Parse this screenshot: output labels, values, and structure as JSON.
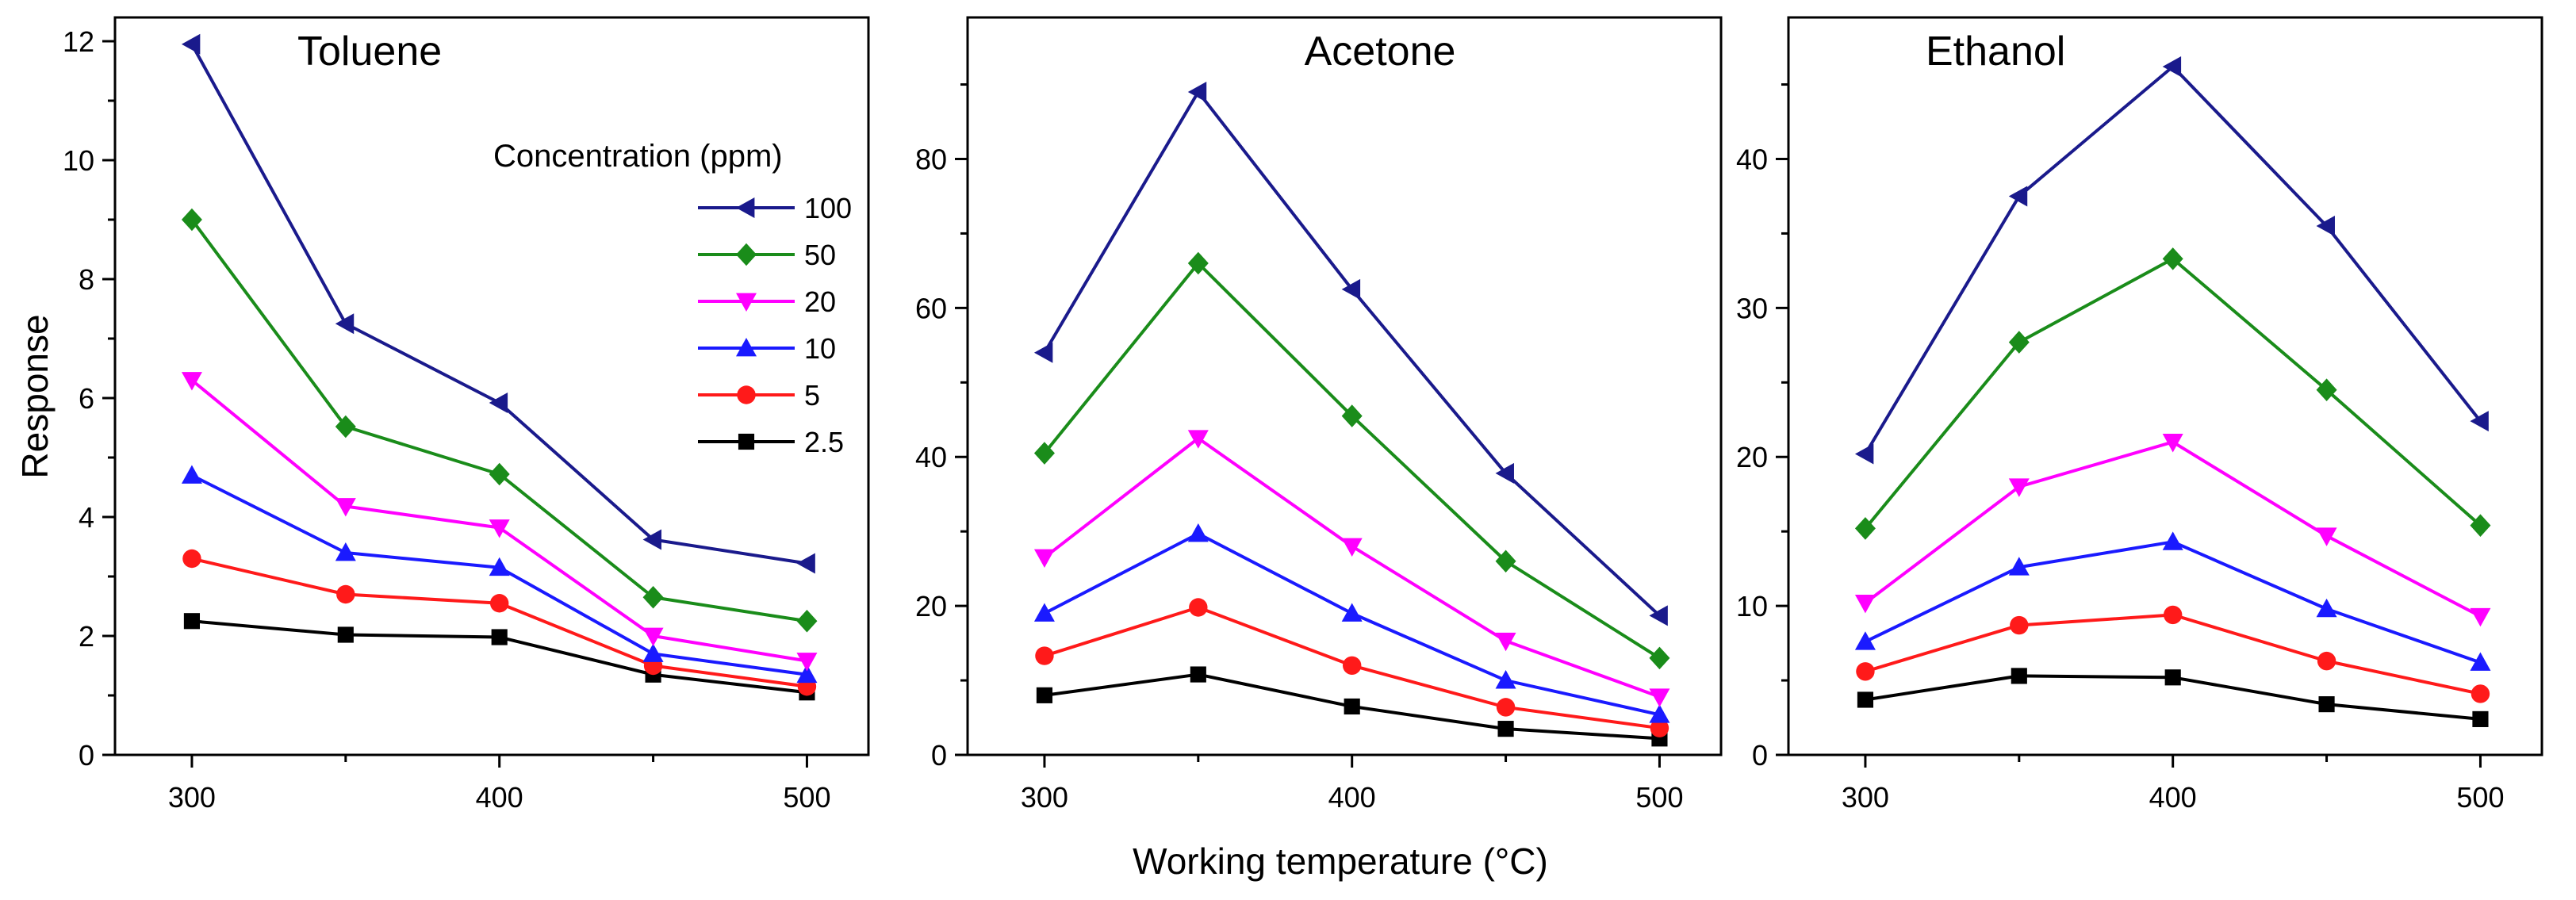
{
  "figure": {
    "shared_ylabel": "Response",
    "shared_xlabel": "Working temperature (°C)",
    "legend_title": "Concentration (ppm)"
  },
  "colors": {
    "100": "#1a1a8c",
    "50": "#1a8c1a",
    "20": "#ff00ff",
    "10": "#1a1aff",
    "5": "#ff1a1a",
    "2.5": "#000000"
  },
  "markers": {
    "100": "triangle-left",
    "50": "diamond",
    "20": "triangle-down",
    "10": "triangle-up",
    "5": "circle",
    "2.5": "square"
  },
  "chart_data": [
    {
      "type": "line",
      "title": "Toluene",
      "xlabel": "Working temperature (°C)",
      "ylabel": "Response",
      "x": [
        300,
        350,
        400,
        450,
        500
      ],
      "xlim": [
        275,
        520
      ],
      "ylim": [
        0,
        12.4
      ],
      "xticks": [
        300,
        400,
        500
      ],
      "yticks": [
        0,
        2,
        4,
        6,
        8,
        10,
        12
      ],
      "legend": "right",
      "series": [
        {
          "name": "100",
          "values": [
            11.95,
            7.25,
            5.92,
            3.62,
            3.22
          ]
        },
        {
          "name": "50",
          "values": [
            9.0,
            5.52,
            4.72,
            2.65,
            2.25
          ]
        },
        {
          "name": "20",
          "values": [
            6.3,
            4.18,
            3.82,
            2.0,
            1.58
          ]
        },
        {
          "name": "10",
          "values": [
            4.7,
            3.4,
            3.15,
            1.7,
            1.35
          ]
        },
        {
          "name": "5",
          "values": [
            3.3,
            2.7,
            2.55,
            1.5,
            1.15
          ]
        },
        {
          "name": "2.5",
          "values": [
            2.25,
            2.02,
            1.98,
            1.35,
            1.05
          ]
        }
      ]
    },
    {
      "type": "line",
      "title": "Acetone",
      "xlabel": "Working temperature (°C)",
      "ylabel": "Response",
      "x": [
        300,
        350,
        400,
        450,
        500
      ],
      "xlim": [
        275,
        520
      ],
      "ylim": [
        0,
        99
      ],
      "xticks": [
        300,
        400,
        500
      ],
      "yticks": [
        0,
        20,
        40,
        60,
        80
      ],
      "series": [
        {
          "name": "100",
          "values": [
            54,
            89,
            62.5,
            37.8,
            18.7
          ]
        },
        {
          "name": "50",
          "values": [
            40.5,
            66,
            45.5,
            26,
            13
          ]
        },
        {
          "name": "20",
          "values": [
            26.5,
            42.5,
            28,
            15.3,
            7.8
          ]
        },
        {
          "name": "10",
          "values": [
            19,
            29.7,
            19,
            10,
            5.4
          ]
        },
        {
          "name": "5",
          "values": [
            13.3,
            19.8,
            12,
            6.4,
            3.6
          ]
        },
        {
          "name": "2.5",
          "values": [
            8,
            10.8,
            6.5,
            3.5,
            2.2
          ]
        }
      ]
    },
    {
      "type": "line",
      "title": "Ethanol",
      "xlabel": "Working temperature (°C)",
      "ylabel": "Response",
      "x": [
        300,
        350,
        400,
        450,
        500
      ],
      "xlim": [
        275,
        520
      ],
      "ylim": [
        0,
        49.5
      ],
      "xticks": [
        300,
        400,
        500
      ],
      "yticks": [
        0,
        10,
        20,
        30,
        40
      ],
      "series": [
        {
          "name": "100",
          "values": [
            20.2,
            37.5,
            46.2,
            35.5,
            22.4
          ]
        },
        {
          "name": "50",
          "values": [
            15.2,
            27.7,
            33.3,
            24.5,
            15.4
          ]
        },
        {
          "name": "20",
          "values": [
            10.2,
            18,
            21,
            14.7,
            9.3
          ]
        },
        {
          "name": "10",
          "values": [
            7.6,
            12.6,
            14.3,
            9.8,
            6.2
          ]
        },
        {
          "name": "5",
          "values": [
            5.6,
            8.7,
            9.4,
            6.3,
            4.1
          ]
        },
        {
          "name": "2.5",
          "values": [
            3.7,
            5.3,
            5.2,
            3.4,
            2.4
          ]
        }
      ]
    }
  ]
}
